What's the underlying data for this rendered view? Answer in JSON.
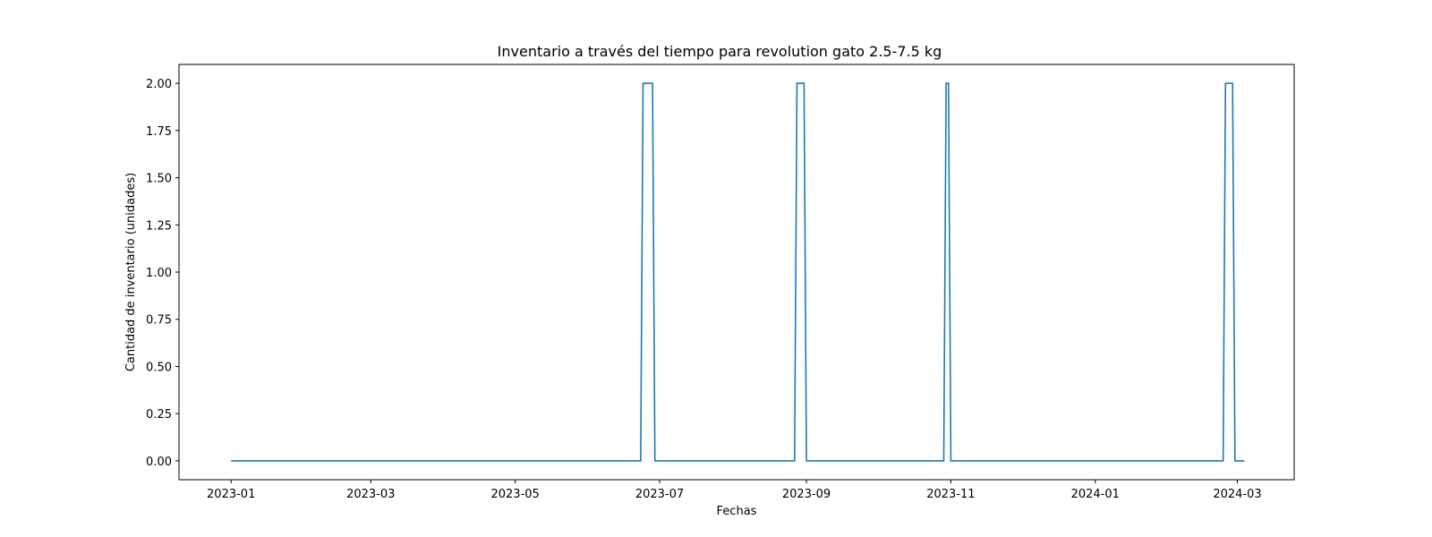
{
  "chart_data": {
    "type": "line",
    "title": "Inventario a través del tiempo para revolution gato 2.5-7.5 kg",
    "xlabel": "Fechas",
    "ylabel": "Cantidad de inventario (unidades)",
    "xlim": [
      "2022-12-10",
      "2024-03-25"
    ],
    "ylim": [
      -0.1,
      2.1
    ],
    "yticks": [
      0.0,
      0.25,
      0.5,
      0.75,
      1.0,
      1.25,
      1.5,
      1.75,
      2.0
    ],
    "ytick_labels": [
      "0.00",
      "0.25",
      "0.50",
      "0.75",
      "1.00",
      "1.25",
      "1.50",
      "1.75",
      "2.00"
    ],
    "xticks": [
      "2023-01-01",
      "2023-03-01",
      "2023-05-01",
      "2023-07-01",
      "2023-09-01",
      "2023-11-01",
      "2024-01-01",
      "2024-03-01"
    ],
    "xtick_labels": [
      "2023-01",
      "2023-03",
      "2023-05",
      "2023-07",
      "2023-09",
      "2023-11",
      "2024-01",
      "2024-03"
    ],
    "grid": false,
    "series": [
      {
        "color": "#1f77b4",
        "points": [
          [
            "2023-01-01",
            0
          ],
          [
            "2023-06-23",
            0
          ],
          [
            "2023-06-24",
            2
          ],
          [
            "2023-06-28",
            2
          ],
          [
            "2023-06-29",
            0
          ],
          [
            "2023-08-27",
            0
          ],
          [
            "2023-08-28",
            2
          ],
          [
            "2023-08-31",
            2
          ],
          [
            "2023-09-01",
            0
          ],
          [
            "2023-10-29",
            0
          ],
          [
            "2023-10-30",
            2
          ],
          [
            "2023-10-31",
            2
          ],
          [
            "2023-11-01",
            0
          ],
          [
            "2024-02-24",
            0
          ],
          [
            "2024-02-25",
            2
          ],
          [
            "2024-02-28",
            2
          ],
          [
            "2024-02-29",
            0
          ],
          [
            "2024-03-04",
            0
          ]
        ]
      }
    ]
  }
}
